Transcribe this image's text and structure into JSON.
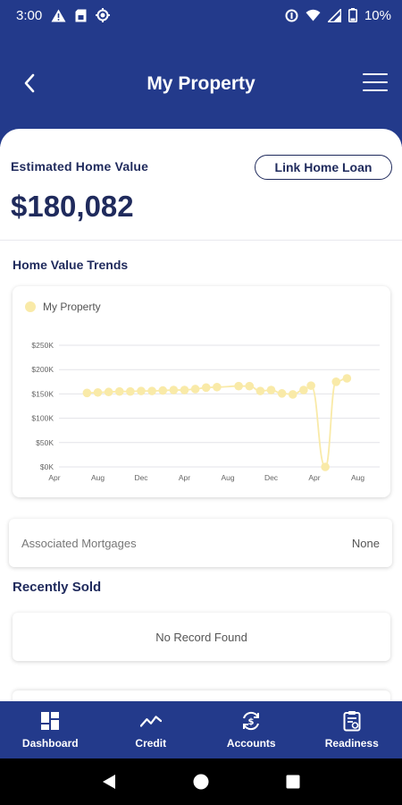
{
  "status_bar": {
    "time": "3:00",
    "battery": "10%",
    "icons": [
      "alert-icon",
      "sim-icon",
      "sync-icon",
      "data-saver-icon",
      "wifi-icon",
      "signal-icon",
      "battery-icon"
    ]
  },
  "header": {
    "title": "My Property",
    "back_icon": "chevron-left-icon",
    "menu_icon": "hamburger-menu-icon"
  },
  "colors": {
    "brand": "#233a8b",
    "text_dark": "#1f2a5c",
    "series": "#f9eaa8"
  },
  "estimated": {
    "label": "Estimated Home Value",
    "value": "$180,082",
    "link_button": "Link Home Loan"
  },
  "trends": {
    "title": "Home Value Trends"
  },
  "chart_data": {
    "type": "line",
    "title": "",
    "xlabel": "",
    "ylabel": "",
    "legend_position": "top-left",
    "grid": true,
    "ylim": [
      0,
      250000
    ],
    "y_ticks": [
      "$0K",
      "$50K",
      "$100K",
      "$150K",
      "$200K",
      "$250K"
    ],
    "x_ticks": [
      "Apr",
      "Aug",
      "Dec",
      "Apr",
      "Aug",
      "Dec",
      "Apr",
      "Aug"
    ],
    "series": [
      {
        "name": "My Property",
        "points": [
          {
            "x": 0.75,
            "y": 152000
          },
          {
            "x": 1.0,
            "y": 153000
          },
          {
            "x": 1.25,
            "y": 154000
          },
          {
            "x": 1.5,
            "y": 155000
          },
          {
            "x": 1.75,
            "y": 155000
          },
          {
            "x": 2.0,
            "y": 156000
          },
          {
            "x": 2.25,
            "y": 156000
          },
          {
            "x": 2.5,
            "y": 157000
          },
          {
            "x": 2.75,
            "y": 158000
          },
          {
            "x": 3.0,
            "y": 158000
          },
          {
            "x": 3.25,
            "y": 160000
          },
          {
            "x": 3.5,
            "y": 163000
          },
          {
            "x": 3.75,
            "y": 164000
          },
          {
            "x": 4.25,
            "y": 166000
          },
          {
            "x": 4.5,
            "y": 166000
          },
          {
            "x": 4.75,
            "y": 156000
          },
          {
            "x": 5.0,
            "y": 158000
          },
          {
            "x": 5.25,
            "y": 151000
          },
          {
            "x": 5.5,
            "y": 149000
          },
          {
            "x": 5.75,
            "y": 158000
          },
          {
            "x": 5.92,
            "y": 167000
          },
          {
            "x": 6.25,
            "y": 0
          },
          {
            "x": 6.5,
            "y": 175000
          },
          {
            "x": 6.75,
            "y": 182000
          }
        ]
      }
    ]
  },
  "mortgages": {
    "label": "Associated Mortgages",
    "value": "None"
  },
  "recently_sold": {
    "title": "Recently Sold",
    "empty_text": "No Record Found"
  },
  "bottom_nav": {
    "items": [
      {
        "label": "Dashboard",
        "icon": "dashboard-grid-icon"
      },
      {
        "label": "Credit",
        "icon": "trend-line-icon"
      },
      {
        "label": "Accounts",
        "icon": "dollar-cycle-icon"
      },
      {
        "label": "Readiness",
        "icon": "clipboard-check-icon"
      }
    ]
  }
}
